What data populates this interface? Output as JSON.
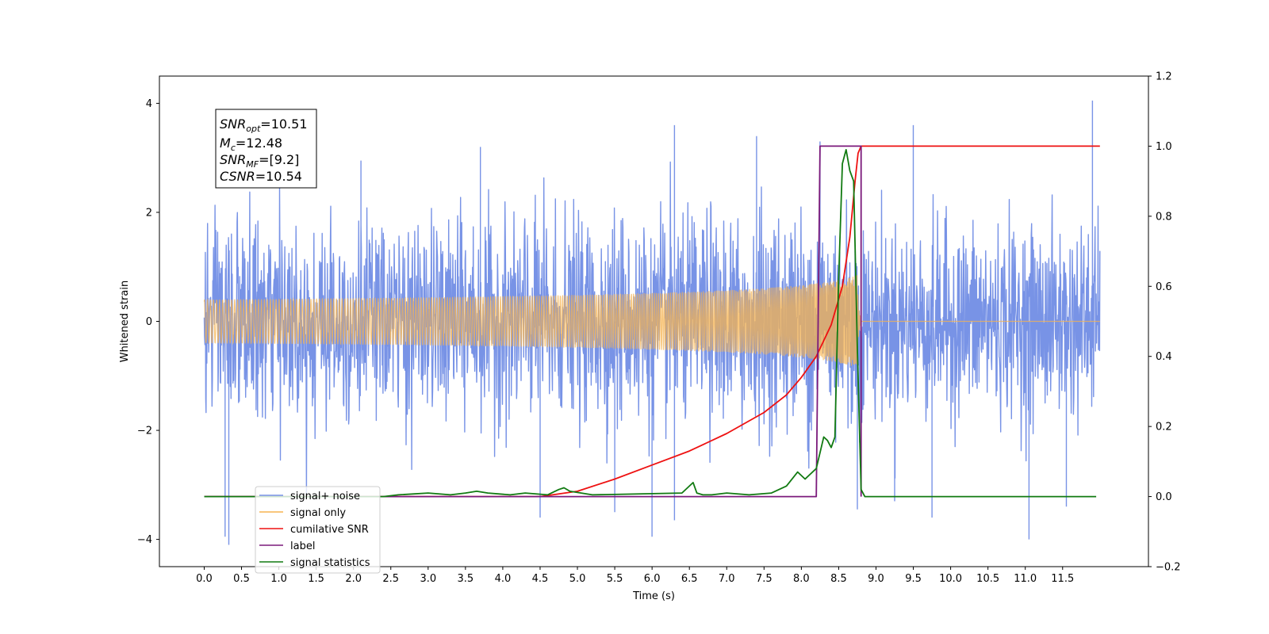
{
  "chart_data": {
    "type": "line",
    "xlabel": "Time (s)",
    "ylabel": "Whitened strain",
    "xlim": [
      -0.6,
      12.65
    ],
    "ylim": [
      -4.5,
      4.5
    ],
    "y2lim": [
      -0.2,
      1.2
    ],
    "x_ticks": [
      "0.0",
      "0.5",
      "1.0",
      "1.5",
      "2.0",
      "2.5",
      "3.0",
      "3.5",
      "4.0",
      "4.5",
      "5.0",
      "5.5",
      "6.0",
      "6.5",
      "7.0",
      "7.5",
      "8.0",
      "8.5",
      "9.0",
      "9.5",
      "10.0",
      "10.5",
      "11.0",
      "11.5"
    ],
    "y_ticks": [
      "4",
      "2",
      "0",
      "−2",
      "−4"
    ],
    "y2_ticks": [
      "1.2",
      "1.0",
      "0.8",
      "0.6",
      "0.4",
      "0.2",
      "0.0",
      "−0.2"
    ],
    "annotation": {
      "snr_opt": {
        "name": "SNR",
        "sub": "opt",
        "value": "=10.51"
      },
      "mc": {
        "name": "M",
        "sub": "c",
        "value": "=12.48"
      },
      "snr_mf": {
        "name": "SNR",
        "sub": "MF",
        "value": "=[9.2]"
      },
      "csnr": {
        "name": "CSNR",
        "value": "=10.54"
      }
    },
    "series": [
      {
        "name": "signal+ noise",
        "axis": "left",
        "color": "#7893e6",
        "x_range": [
          0.0,
          12.0
        ],
        "std": 0.85,
        "spikes": [
          [
            0.33,
            -4.1
          ],
          [
            0.28,
            -3.95
          ],
          [
            2.1,
            2.95
          ],
          [
            3.7,
            3.2
          ],
          [
            4.5,
            -3.6
          ],
          [
            5.5,
            -3.5
          ],
          [
            6.3,
            3.6
          ],
          [
            6.3,
            -3.65
          ],
          [
            6.0,
            -3.95
          ],
          [
            7.4,
            3.4
          ],
          [
            8.25,
            3.3
          ],
          [
            9.5,
            3.6
          ],
          [
            9.25,
            -3.3
          ],
          [
            9.75,
            -3.6
          ],
          [
            11.05,
            -4.0
          ],
          [
            11.55,
            -3.4
          ],
          [
            11.9,
            4.05
          ],
          [
            8.75,
            -3.45
          ]
        ]
      },
      {
        "name": "signal only",
        "axis": "left",
        "color": "#f5b350",
        "chirp": {
          "t_merge": 8.75,
          "amp_at_merge": 0.85
        }
      },
      {
        "name": "cumilative SNR",
        "axis": "right",
        "color": "#ee1111",
        "x": [
          4.5,
          5.0,
          5.5,
          6.0,
          6.5,
          7.0,
          7.5,
          7.8,
          8.0,
          8.2,
          8.4,
          8.55,
          8.65,
          8.72,
          8.76,
          8.8,
          12.0
        ],
        "y": [
          0.0,
          0.015,
          0.05,
          0.09,
          0.13,
          0.18,
          0.24,
          0.29,
          0.34,
          0.4,
          0.49,
          0.6,
          0.74,
          0.9,
          0.98,
          1.0,
          1.0
        ]
      },
      {
        "name": "label",
        "axis": "right",
        "color": "#7b1a7b",
        "x": [
          0.0,
          8.2,
          8.25,
          8.8,
          8.8
        ],
        "y": [
          0.0,
          0.0,
          1.0,
          1.0,
          0.0
        ]
      },
      {
        "name": "signal statistics",
        "axis": "right",
        "color": "#117a11",
        "x": [
          0.0,
          2.4,
          2.6,
          3.0,
          3.3,
          3.5,
          3.65,
          3.8,
          4.1,
          4.3,
          4.6,
          4.75,
          4.82,
          4.9,
          5.05,
          5.2,
          6.4,
          6.55,
          6.6,
          6.68,
          6.8,
          7.0,
          7.3,
          7.6,
          7.8,
          7.95,
          8.05,
          8.1,
          8.2,
          8.3,
          8.35,
          8.4,
          8.45,
          8.5,
          8.55,
          8.6,
          8.65,
          8.7,
          8.75,
          8.8,
          8.85,
          8.95,
          11.95
        ],
        "y": [
          0.0,
          0.0,
          0.005,
          0.01,
          0.005,
          0.01,
          0.015,
          0.01,
          0.005,
          0.01,
          0.005,
          0.02,
          0.025,
          0.015,
          0.01,
          0.005,
          0.01,
          0.04,
          0.01,
          0.005,
          0.005,
          0.01,
          0.005,
          0.01,
          0.03,
          0.07,
          0.05,
          0.06,
          0.08,
          0.17,
          0.16,
          0.14,
          0.17,
          0.62,
          0.95,
          0.99,
          0.93,
          0.9,
          0.42,
          0.02,
          0.0,
          0.0,
          0.0
        ]
      }
    ],
    "legend": {
      "placement": "bottom-left",
      "entries": [
        "signal+ noise",
        "signal only",
        "cumilative SNR",
        "label",
        "signal statistics"
      ]
    },
    "grid": false
  }
}
